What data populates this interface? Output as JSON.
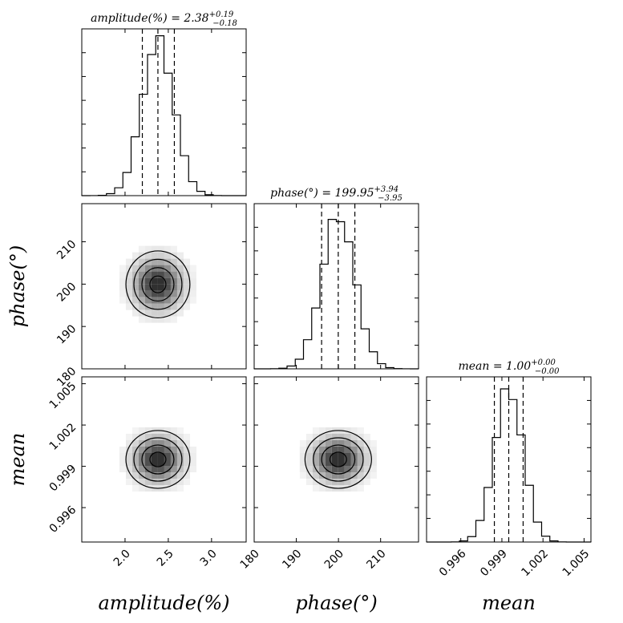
{
  "chart_data": {
    "type": "corner",
    "parameters": [
      {
        "name": "amplitude",
        "axis_label": "amplitude(%)",
        "title_prefix": "amplitude(%) = ",
        "median": "2.38",
        "upper": "+0.19",
        "lower": "−0.18",
        "median_value": 2.38,
        "err_plus": 0.19,
        "err_minus": 0.18,
        "range": [
          1.5,
          3.4
        ],
        "tick_values": [
          2.0,
          2.5,
          3.0
        ],
        "tick_labels": [
          "2.0",
          "2.5",
          "3.0"
        ]
      },
      {
        "name": "phase",
        "axis_label": "phase(°)",
        "title_prefix": "phase(°) = ",
        "median": "199.95",
        "upper": "+3.94",
        "lower": "−3.95",
        "median_value": 199.95,
        "err_plus": 3.94,
        "err_minus": 3.95,
        "range": [
          180,
          219
        ],
        "tick_values": [
          180,
          190,
          200,
          210
        ],
        "tick_labels": [
          "180",
          "190",
          "200",
          "210"
        ]
      },
      {
        "name": "mean",
        "axis_label": "mean",
        "title_prefix": "mean = ",
        "median": "1.00",
        "upper": "+0.00",
        "lower": "−0.00",
        "median_value": 0.9995,
        "err_plus": 0.00105,
        "err_minus": 0.00105,
        "range": [
          0.9935,
          1.0055
        ],
        "tick_values": [
          0.996,
          0.999,
          1.002,
          1.005
        ],
        "tick_labels": [
          "0.996",
          "0.999",
          "1.002",
          "1.005"
        ]
      }
    ],
    "quantile_lines": "16%, 50%, 84%",
    "contour_levels_sigma": [
      0.5,
      1.0,
      1.5,
      2.0
    ]
  }
}
